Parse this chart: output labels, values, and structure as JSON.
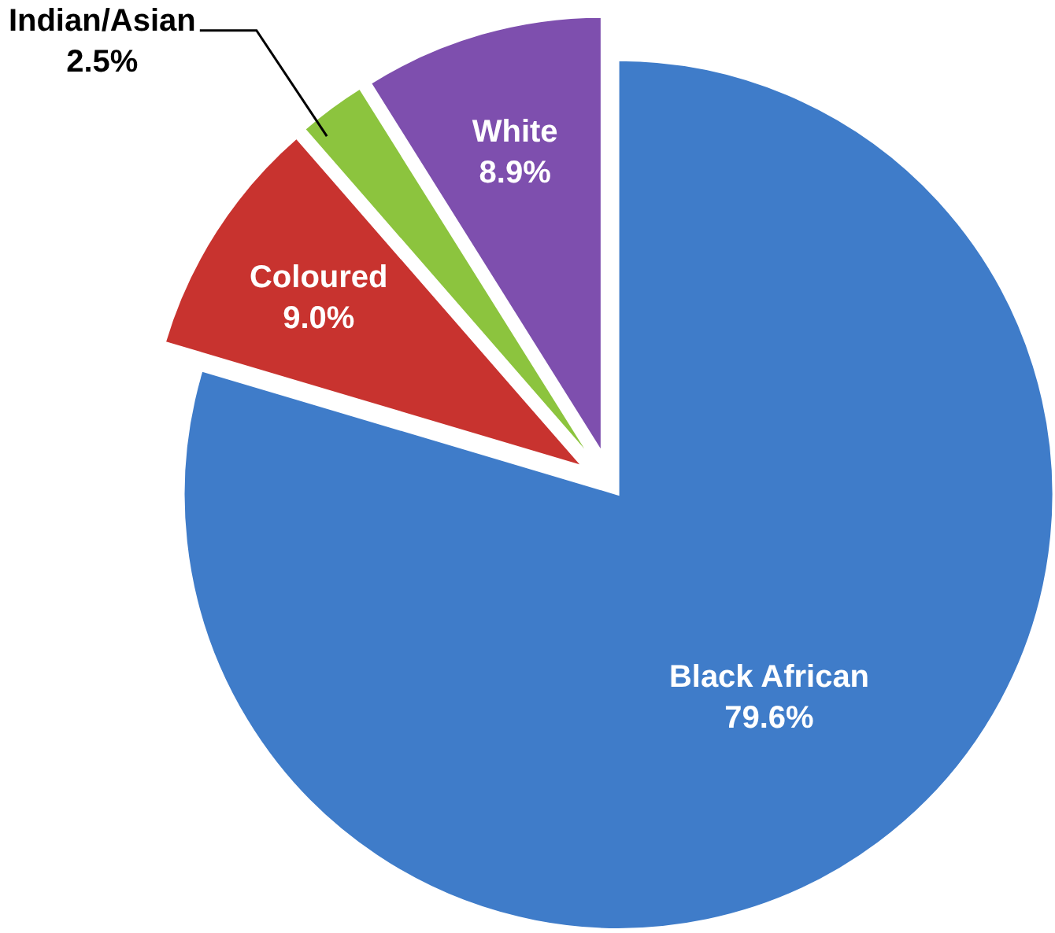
{
  "chart_data": {
    "type": "pie",
    "categories": [
      "Black African",
      "Coloured",
      "Indian/Asian",
      "White"
    ],
    "values": [
      79.6,
      9.0,
      2.5,
      8.9
    ],
    "value_labels": [
      "79.6%",
      "9.0%",
      "2.5%",
      "8.9%"
    ],
    "colors": [
      "#3f7cc9",
      "#c8332f",
      "#8cc43e",
      "#7e4fae"
    ]
  }
}
